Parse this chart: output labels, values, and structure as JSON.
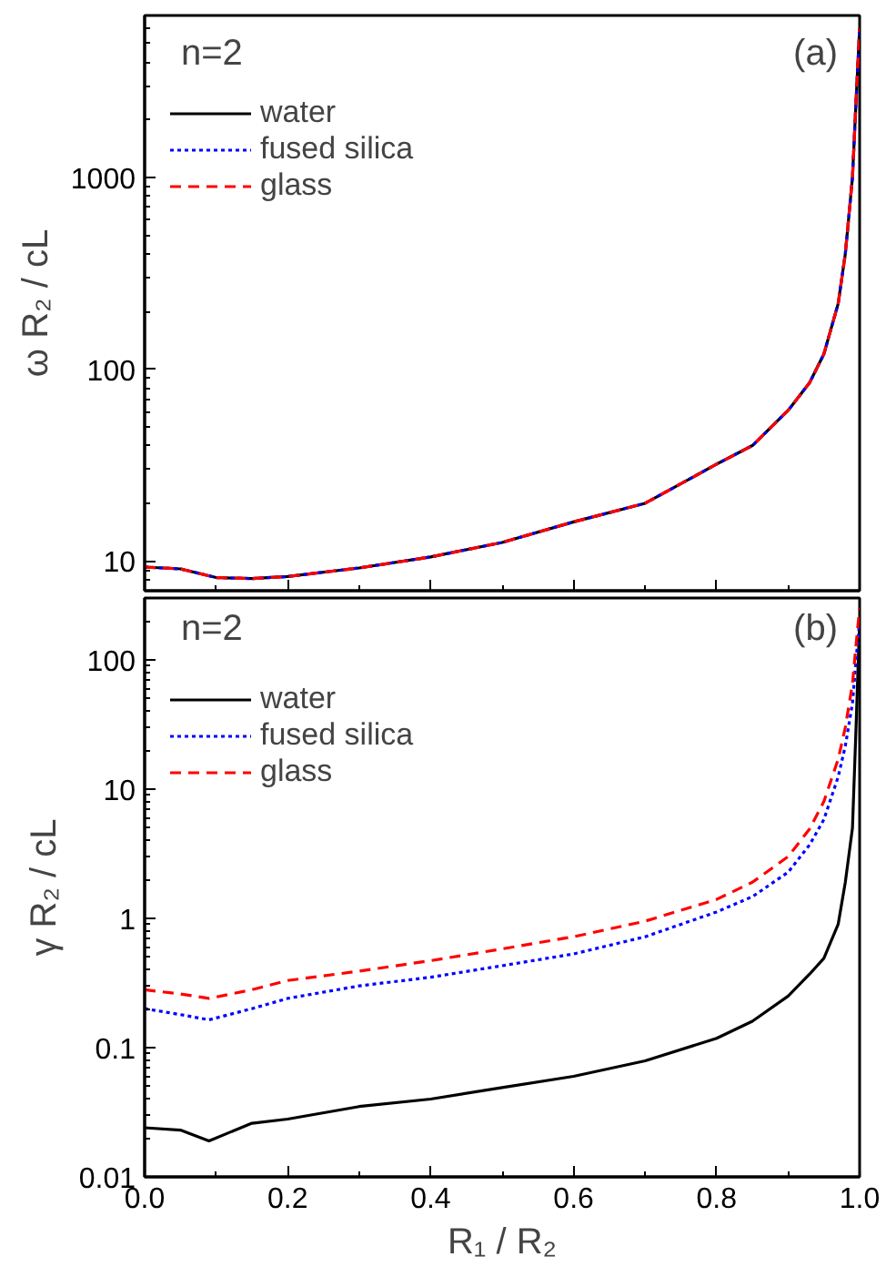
{
  "chart_data": [
    {
      "type": "line",
      "ylabel": "ω R₂ / cL",
      "annotations": [
        "n=2",
        "(a)"
      ],
      "log": "y",
      "legend": "top left",
      "tick_labels": "y",
      "grid": false,
      "x": [
        0,
        0.05,
        0.1,
        0.15,
        0.2,
        0.3,
        0.4,
        0.5,
        0.6,
        0.7,
        0.8,
        0.85,
        0.9,
        0.93,
        0.95,
        0.97,
        0.98,
        0.99,
        0.995,
        1.0
      ],
      "xlim": [
        0,
        1
      ],
      "xticks": [
        0,
        0.2,
        0.4,
        0.6,
        0.8,
        1
      ],
      "ylim": [
        7,
        7000
      ],
      "yticks": [
        10,
        100,
        1000
      ],
      "series": [
        {
          "name": "water",
          "color": "#000000",
          "line_style": "solid",
          "values": [
            9.3,
            9.1,
            8.2,
            8.1,
            8.3,
            9.2,
            10.5,
            12.5,
            16,
            20,
            32,
            40,
            61,
            85,
            120,
            220,
            400,
            1000,
            2500,
            6000
          ]
        },
        {
          "name": "fused silica",
          "color": "#0000ff",
          "line_style": "dotted",
          "values": [
            9.3,
            9.1,
            8.2,
            8.1,
            8.3,
            9.2,
            10.5,
            12.5,
            16,
            20,
            32,
            40,
            61,
            85,
            120,
            220,
            400,
            1000,
            2500,
            6000
          ]
        },
        {
          "name": "glass",
          "color": "#ff0000",
          "line_style": "dashed",
          "values": [
            9.3,
            9.1,
            8.2,
            8.1,
            8.3,
            9.2,
            10.5,
            12.5,
            16,
            20,
            32,
            40,
            61,
            85,
            120,
            220,
            400,
            1000,
            2500,
            6000
          ]
        }
      ]
    },
    {
      "type": "line",
      "xlabel": "R₁ / R₂",
      "ylabel": "γ R₂ / cL",
      "annotations": [
        "n=2",
        "(b)"
      ],
      "log": "y",
      "legend": "top left",
      "grid": false,
      "x": [
        0,
        0.05,
        0.09,
        0.15,
        0.2,
        0.3,
        0.4,
        0.5,
        0.6,
        0.7,
        0.8,
        0.85,
        0.9,
        0.93,
        0.95,
        0.97,
        0.98,
        0.99,
        0.995,
        1.0
      ],
      "xlim": [
        0,
        1
      ],
      "xticks": [
        {
          "value": 0,
          "label": "0.0"
        },
        {
          "value": 0.2,
          "label": "0.2"
        },
        {
          "value": 0.4,
          "label": "0.4"
        },
        {
          "value": 0.6,
          "label": "0.6"
        },
        {
          "value": 0.8,
          "label": "0.8"
        },
        {
          "value": 1,
          "label": "1.0"
        }
      ],
      "ylim": [
        0.01,
        300
      ],
      "yticks": [
        0.01,
        0.1,
        1,
        10,
        100
      ],
      "series": [
        {
          "name": "water",
          "color": "#000000",
          "line_style": "solid",
          "values": [
            0.024,
            0.023,
            0.019,
            0.026,
            0.028,
            0.035,
            0.04,
            0.049,
            0.06,
            0.079,
            0.118,
            0.16,
            0.25,
            0.37,
            0.49,
            0.9,
            1.9,
            5,
            30,
            200
          ]
        },
        {
          "name": "fused silica",
          "color": "#0000ff",
          "line_style": "dotted",
          "values": [
            0.2,
            0.18,
            0.164,
            0.2,
            0.24,
            0.3,
            0.35,
            0.43,
            0.53,
            0.72,
            1.12,
            1.47,
            2.27,
            3.7,
            5.8,
            12.4,
            21.5,
            46,
            100,
            200
          ]
        },
        {
          "name": "glass",
          "color": "#ff0000",
          "line_style": "dashed",
          "values": [
            0.28,
            0.26,
            0.24,
            0.28,
            0.33,
            0.39,
            0.47,
            0.58,
            0.72,
            0.95,
            1.4,
            1.9,
            3.0,
            4.9,
            8.0,
            17,
            30,
            65,
            130,
            250
          ]
        }
      ]
    }
  ]
}
